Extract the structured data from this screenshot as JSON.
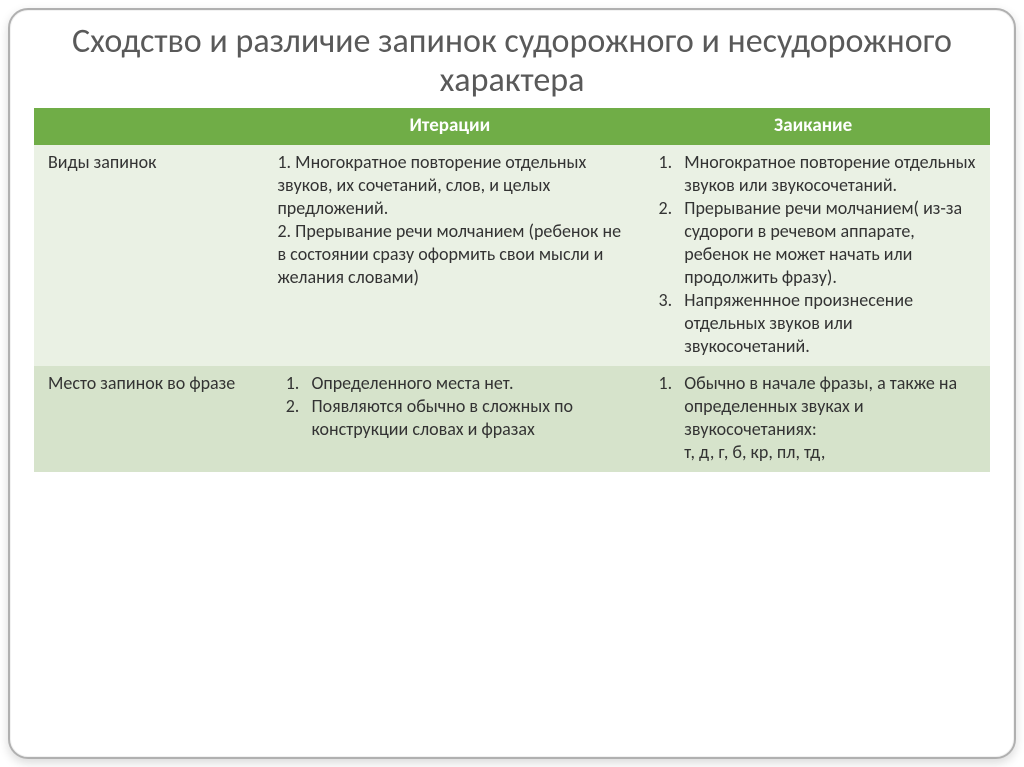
{
  "title": "Сходство и различие запинок судорожного и несудорожного характера",
  "headers": {
    "blank": "",
    "col2": "Итерации",
    "col3": "Заикание"
  },
  "rows": [
    {
      "label": "Виды запинок",
      "iter_items_raw": "1. Многократное повторение отдельных звуков, их сочетаний, слов, и целых предложений.\n2. Прерывание речи молчанием (ребенок не в состоянии сразу оформить свои мысли и желания словами)",
      "zaik_items": [
        "Многократное повторение отдельных звуков или звукосочетаний.",
        "Прерывание речи молчанием( из-за судороги в речевом аппарате, ребенок не может начать или продолжить фразу).",
        "Напряженнное произнесение отдельных звуков или звукосочетаний."
      ]
    },
    {
      "label": "Место запинок во фразе",
      "iter_items": [
        "Определенного места нет.",
        "Появляются обычно в сложных по конструкции словах и фразах"
      ],
      "zaik_items": [
        "Обычно в начале фразы, а также на определенных звуках и звукосочетаниях:"
      ],
      "zaik_tail": "т, д, г, б, кр, пл, тд,"
    }
  ],
  "colors": {
    "header_bg": "#70ad47",
    "row_a_bg": "#eaf1e4",
    "row_b_bg": "#d6e3cb",
    "title_color": "#595959",
    "text_color": "#333333",
    "border_color": "#b0b0b0"
  },
  "fonts": {
    "title_size_pt": 26,
    "cell_size_pt": 13
  }
}
